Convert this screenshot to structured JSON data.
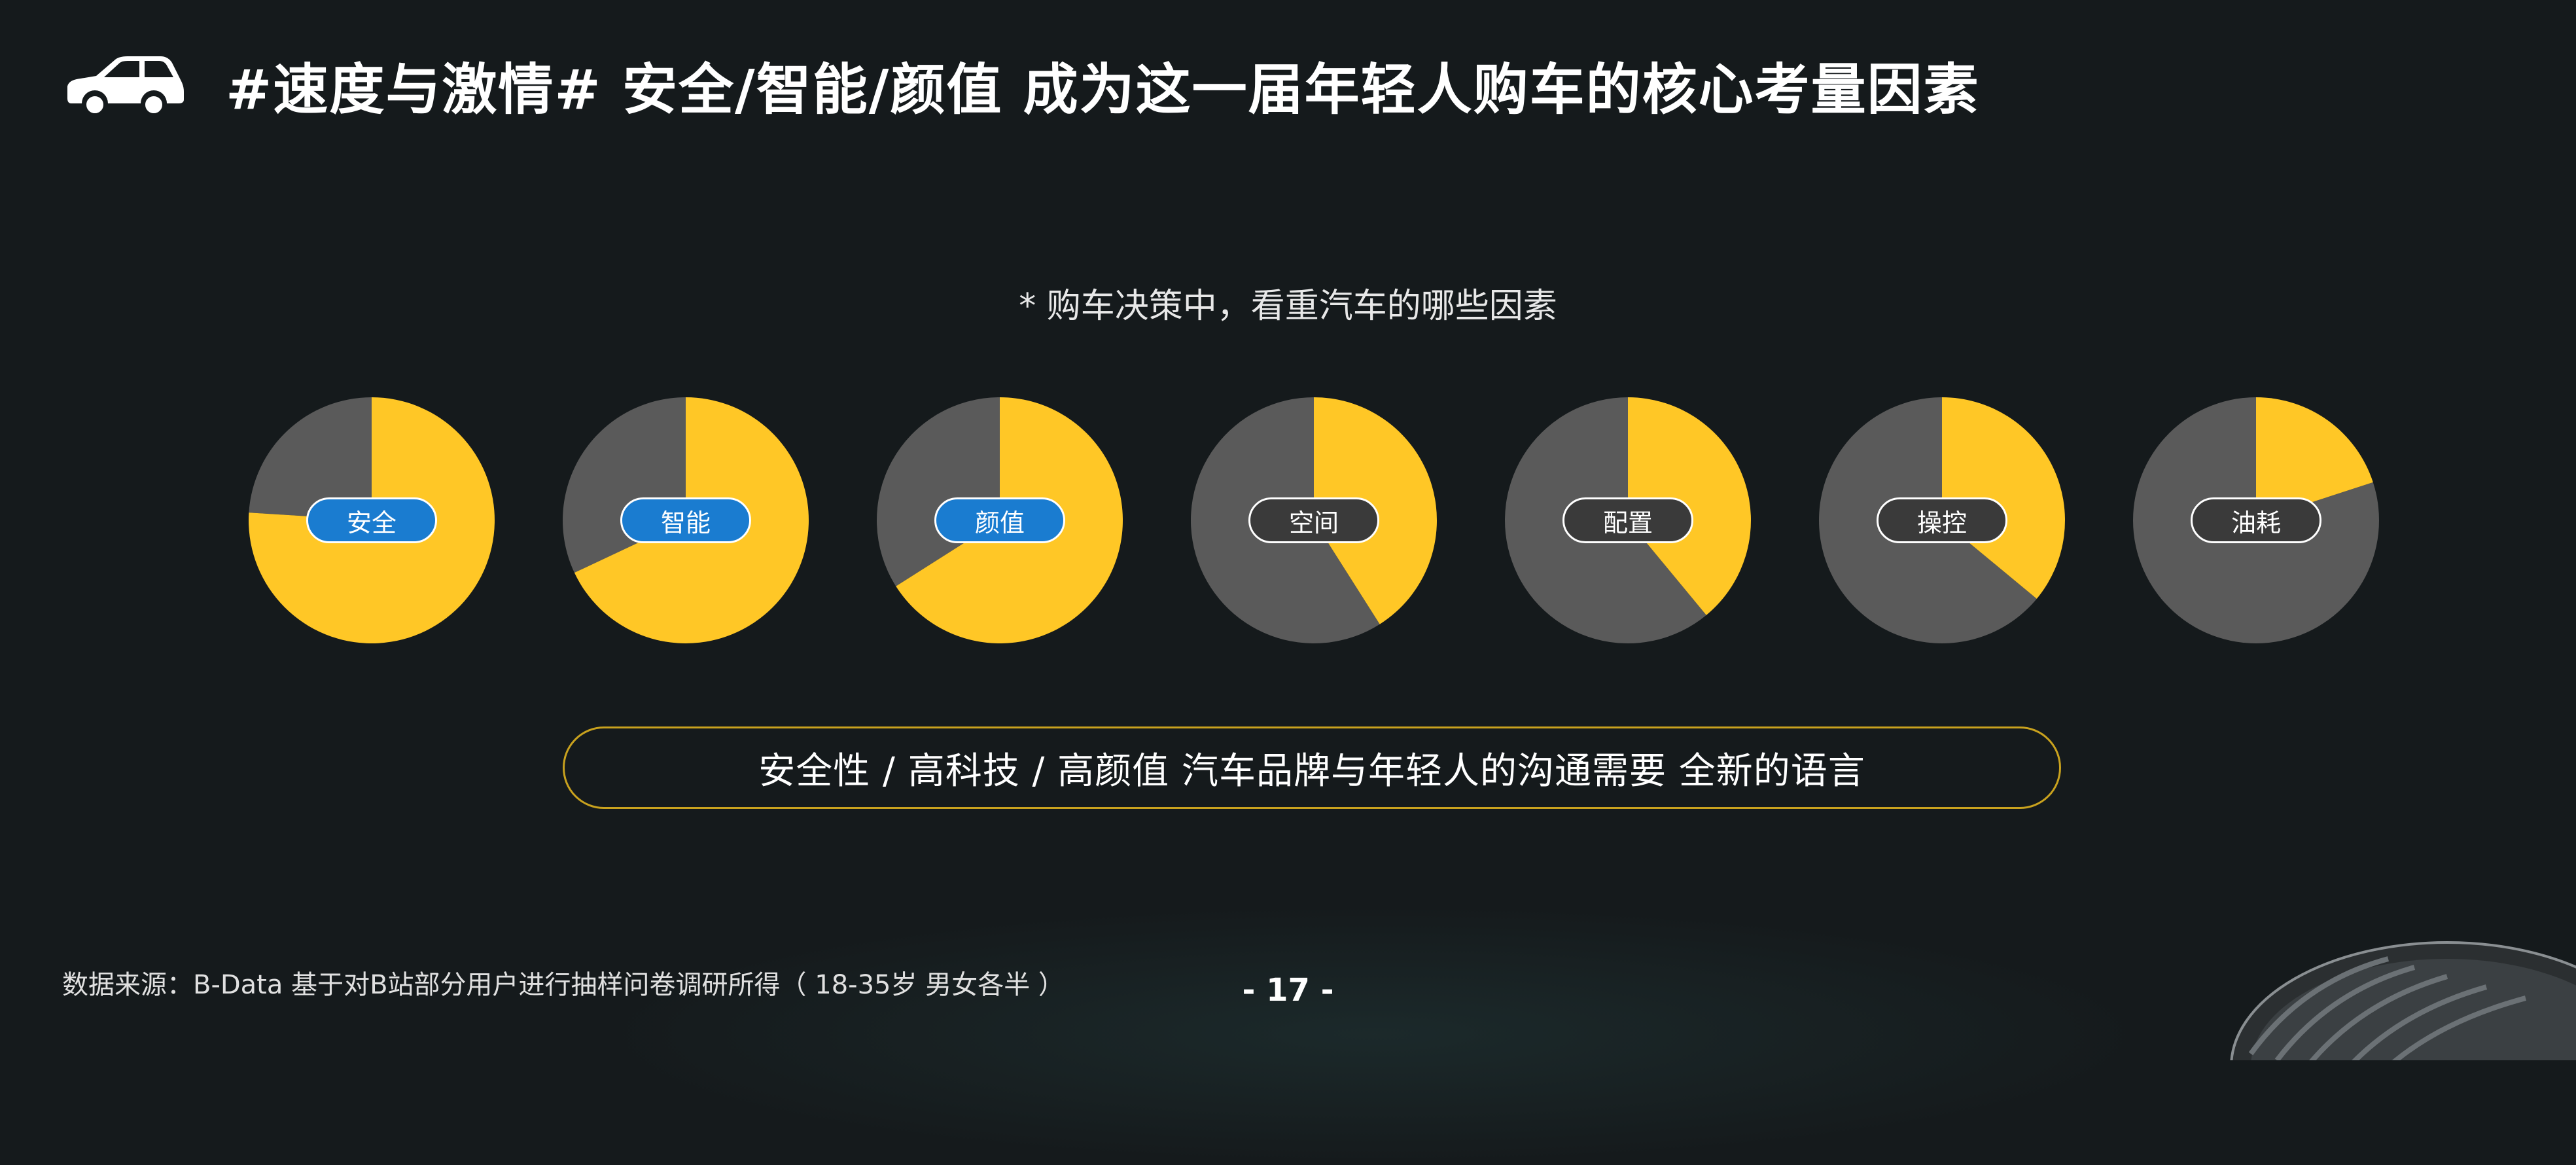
{
  "header": {
    "title": "#速度与激情# 安全/智能/颜值 成为这一届年轻人购车的核心考量因素",
    "icon": "car-icon"
  },
  "subtitle": "* 购车决策中，看重汽车的哪些因素",
  "colors": {
    "accent": "#ffc726",
    "rest": "#5a5a5a",
    "label_blue": "#1a7cd0",
    "label_dark": "#3a3a3a",
    "banner_border": "#c9a21e"
  },
  "chart_data": {
    "type": "pie",
    "categories": [
      "安全",
      "智能",
      "颜值",
      "空间",
      "配置",
      "操控",
      "油耗"
    ],
    "values": [
      0.76,
      0.68,
      0.66,
      0.41,
      0.39,
      0.36,
      0.2
    ],
    "highlighted": [
      "安全",
      "智能",
      "颜值"
    ]
  },
  "banner": {
    "text": "安全性 / 高科技 / 高颜值  汽车品牌与年轻人的沟通需要 全新的语言"
  },
  "footer": {
    "source": "数据来源：B-Data  基于对B站部分用户进行抽样问卷调研所得（ 18-35岁 男女各半 ）"
  },
  "page": {
    "number": "- 17 -"
  }
}
